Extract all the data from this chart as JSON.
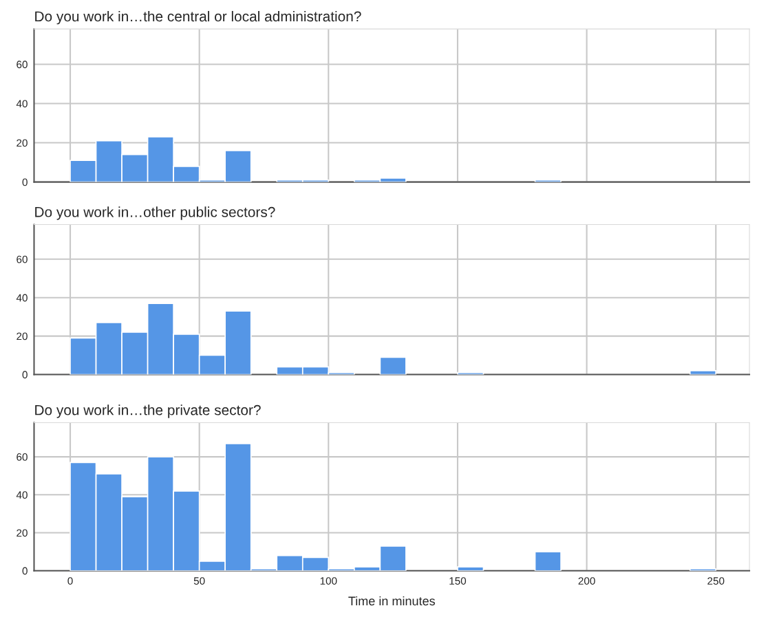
{
  "chart_data": [
    {
      "type": "histogram",
      "title": "Do you work in…the central or local administration?",
      "bins": [
        0,
        10,
        20,
        30,
        40,
        50,
        60,
        70,
        80,
        90,
        100,
        110,
        120,
        130,
        140,
        150,
        160,
        170,
        180,
        190,
        200,
        210,
        220,
        230,
        240,
        250,
        260
      ],
      "values": [
        11,
        21,
        14,
        23,
        8,
        1,
        16,
        0,
        1,
        1,
        0,
        1,
        2,
        0,
        0,
        0,
        0,
        0,
        1,
        0,
        0,
        0,
        0,
        0,
        0,
        0
      ],
      "color": "#5596e6",
      "xlim": [
        -14,
        263
      ],
      "xticks": [
        0,
        50,
        100,
        150,
        200,
        250
      ],
      "ylim": [
        0,
        78
      ],
      "yticks": [
        0,
        20,
        40,
        60
      ],
      "grid": true,
      "tick_labels": "y"
    },
    {
      "type": "histogram",
      "title": "Do you work in…other public sectors?",
      "bins": [
        0,
        10,
        20,
        30,
        40,
        50,
        60,
        70,
        80,
        90,
        100,
        110,
        120,
        130,
        140,
        150,
        160,
        170,
        180,
        190,
        200,
        210,
        220,
        230,
        240,
        250,
        260
      ],
      "values": [
        19,
        27,
        22,
        37,
        21,
        10,
        33,
        0,
        4,
        4,
        1,
        0,
        9,
        0,
        0,
        1,
        0,
        0,
        0,
        0,
        0,
        0,
        0,
        0,
        2,
        0
      ],
      "color": "#5596e6",
      "xlim": [
        -14,
        263
      ],
      "xticks": [
        0,
        50,
        100,
        150,
        200,
        250
      ],
      "ylim": [
        0,
        78
      ],
      "yticks": [
        0,
        20,
        40,
        60
      ],
      "grid": true,
      "tick_labels": "y"
    },
    {
      "type": "histogram",
      "title": "Do you work in…the private sector?",
      "xlabel": "Time in minutes",
      "bins": [
        0,
        10,
        20,
        30,
        40,
        50,
        60,
        70,
        80,
        90,
        100,
        110,
        120,
        130,
        140,
        150,
        160,
        170,
        180,
        190,
        200,
        210,
        220,
        230,
        240,
        250,
        260
      ],
      "values": [
        57,
        51,
        39,
        60,
        42,
        5,
        67,
        1,
        8,
        7,
        1,
        2,
        13,
        0,
        0,
        2,
        0,
        0,
        10,
        0,
        0,
        0,
        0,
        0,
        1,
        0
      ],
      "color": "#5596e6",
      "xlim": [
        -14,
        263
      ],
      "xticks": [
        0,
        50,
        100,
        150,
        200,
        250
      ],
      "ylim": [
        0,
        78
      ],
      "yticks": [
        0,
        20,
        40,
        60
      ],
      "grid": true
    }
  ]
}
